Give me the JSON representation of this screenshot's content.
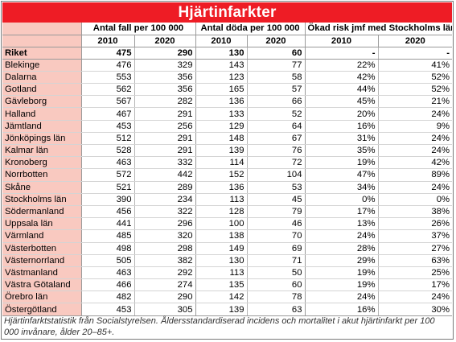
{
  "title": "Hjärtinfarkter",
  "groups": {
    "cases": "Antal fall per 100 000",
    "deaths": "Antal döda per 100 000",
    "risk": "Ökad risk jmf med Stockholms län"
  },
  "years": [
    "2010",
    "2020"
  ],
  "total": {
    "name": "Riket",
    "cases_2010": "475",
    "cases_2020": "290",
    "deaths_2010": "130",
    "deaths_2020": "60",
    "risk_2010": "-",
    "risk_2020": "-"
  },
  "rows": [
    {
      "name": "Blekinge",
      "c10": "476",
      "c20": "329",
      "d10": "143",
      "d20": "77",
      "r10": "22%",
      "r20": "41%"
    },
    {
      "name": "Dalarna",
      "c10": "553",
      "c20": "356",
      "d10": "123",
      "d20": "58",
      "r10": "42%",
      "r20": "52%"
    },
    {
      "name": "Gotland",
      "c10": "562",
      "c20": "356",
      "d10": "165",
      "d20": "57",
      "r10": "44%",
      "r20": "52%"
    },
    {
      "name": "Gävleborg",
      "c10": "567",
      "c20": "282",
      "d10": "136",
      "d20": "66",
      "r10": "45%",
      "r20": "21%"
    },
    {
      "name": "Halland",
      "c10": "467",
      "c20": "291",
      "d10": "133",
      "d20": "52",
      "r10": "20%",
      "r20": "24%"
    },
    {
      "name": "Jämtland",
      "c10": "453",
      "c20": "256",
      "d10": "129",
      "d20": "64",
      "r10": "16%",
      "r20": "9%"
    },
    {
      "name": "Jönköpings län",
      "c10": "512",
      "c20": "291",
      "d10": "148",
      "d20": "67",
      "r10": "31%",
      "r20": "24%"
    },
    {
      "name": "Kalmar län",
      "c10": "528",
      "c20": "291",
      "d10": "139",
      "d20": "76",
      "r10": "35%",
      "r20": "24%"
    },
    {
      "name": "Kronoberg",
      "c10": "463",
      "c20": "332",
      "d10": "114",
      "d20": "72",
      "r10": "19%",
      "r20": "42%"
    },
    {
      "name": "Norrbotten",
      "c10": "572",
      "c20": "442",
      "d10": "152",
      "d20": "104",
      "r10": "47%",
      "r20": "89%"
    },
    {
      "name": "Skåne",
      "c10": "521",
      "c20": "289",
      "d10": "136",
      "d20": "53",
      "r10": "34%",
      "r20": "24%"
    },
    {
      "name": "Stockholms län",
      "c10": "390",
      "c20": "234",
      "d10": "113",
      "d20": "45",
      "r10": "0%",
      "r20": "0%"
    },
    {
      "name": "Södermanland",
      "c10": "456",
      "c20": "322",
      "d10": "128",
      "d20": "79",
      "r10": "17%",
      "r20": "38%"
    },
    {
      "name": "Uppsala län",
      "c10": "441",
      "c20": "296",
      "d10": "100",
      "d20": "46",
      "r10": "13%",
      "r20": "26%"
    },
    {
      "name": "Värmland",
      "c10": "485",
      "c20": "320",
      "d10": "138",
      "d20": "70",
      "r10": "24%",
      "r20": "37%"
    },
    {
      "name": "Västerbotten",
      "c10": "498",
      "c20": "298",
      "d10": "149",
      "d20": "69",
      "r10": "28%",
      "r20": "27%"
    },
    {
      "name": "Västernorrland",
      "c10": "505",
      "c20": "382",
      "d10": "130",
      "d20": "71",
      "r10": "29%",
      "r20": "63%"
    },
    {
      "name": "Västmanland",
      "c10": "463",
      "c20": "292",
      "d10": "113",
      "d20": "50",
      "r10": "19%",
      "r20": "25%"
    },
    {
      "name": "Västra Götaland",
      "c10": "466",
      "c20": "274",
      "d10": "135",
      "d20": "60",
      "r10": "19%",
      "r20": "17%"
    },
    {
      "name": "Örebro län",
      "c10": "482",
      "c20": "290",
      "d10": "142",
      "d20": "78",
      "r10": "24%",
      "r20": "24%"
    },
    {
      "name": "Östergötland",
      "c10": "453",
      "c20": "305",
      "d10": "139",
      "d20": "63",
      "r10": "16%",
      "r20": "30%"
    }
  ],
  "caption": "Hjärtinfarktstatistik från Socialstyrelsen. Åldersstandardiserad incidens och mortalitet i akut hjärtinfarkt per 100 000 invånare, ålder 20–85+.",
  "colors": {
    "title_bg": "#ee1c25",
    "name_bg": "#f9c9c0"
  }
}
